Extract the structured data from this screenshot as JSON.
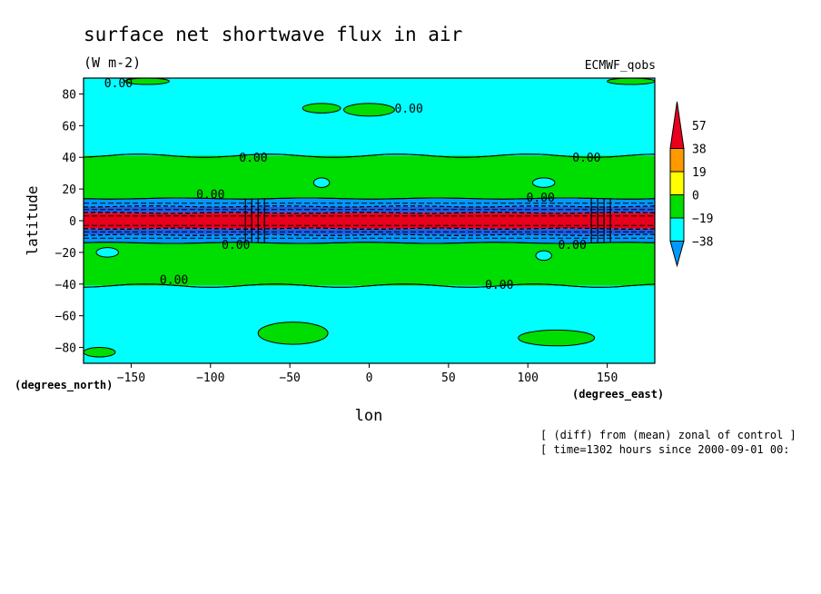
{
  "chart_data": {
    "type": "heatmap",
    "title": "surface net shortwave flux in air",
    "units": "(W m-2)",
    "dataset": "ECMWF_qobs",
    "xlabel": "lon",
    "ylabel": "latitude",
    "x_unit_label": "(degrees_east)",
    "y_unit_label": "(degrees_north)",
    "xlim": [
      -180,
      180
    ],
    "ylim": [
      -90,
      90
    ],
    "x_ticks": [
      -150,
      -100,
      -50,
      0,
      50,
      100,
      150
    ],
    "y_ticks": [
      80,
      60,
      40,
      20,
      0,
      -20,
      -40,
      -60,
      -80
    ],
    "x_tick_labels": [
      "−150",
      "−100",
      "−50",
      "0",
      "50",
      "100",
      "150"
    ],
    "y_tick_labels": [
      "80",
      "60",
      "40",
      "20",
      "0",
      "−20",
      "−40",
      "−60",
      "−80"
    ],
    "notes": [
      "[ (diff) from (mean) zonal of control ]",
      "[ time=1302 hours since 2000-09-01 00:"
    ],
    "colorbar": {
      "levels": [
        57,
        38,
        19,
        0,
        -19,
        -38
      ],
      "labels": [
        "57",
        "38",
        "19",
        "0",
        "−19",
        "−38"
      ],
      "colors": [
        "#e8001c",
        "#ff9900",
        "#ffff00",
        "#00dd00",
        "#00ffff",
        "#0099ff"
      ]
    },
    "zonal_bands": [
      {
        "lat": [
          41,
          90
        ],
        "value_range": "-19 to 0",
        "color": "#00ffff"
      },
      {
        "lat": [
          14,
          41
        ],
        "value_range": "0 to 19",
        "color": "#00dd00"
      },
      {
        "lat": [
          9,
          14
        ],
        "value_range": "-38 to -19",
        "color": "#0099ff"
      },
      {
        "lat": [
          5,
          9
        ],
        "value_range": "< -38",
        "color": "#1a5fe8"
      },
      {
        "lat": [
          -5,
          5
        ],
        "value_range": "> 57",
        "color": "#e8001c"
      },
      {
        "lat": [
          -9,
          -5
        ],
        "value_range": "< -38",
        "color": "#1a5fe8"
      },
      {
        "lat": [
          -14,
          -9
        ],
        "value_range": "-38 to -19",
        "color": "#0099ff"
      },
      {
        "lat": [
          -41,
          -14
        ],
        "value_range": "0 to 19",
        "color": "#00dd00"
      },
      {
        "lat": [
          -90,
          -41
        ],
        "value_range": "-19 to 0",
        "color": "#00ffff"
      }
    ],
    "patches": [
      {
        "lon": -48,
        "lat": -71,
        "rx": 22,
        "ry": 7,
        "color": "#00dd00"
      },
      {
        "lon": 118,
        "lat": -74,
        "rx": 24,
        "ry": 5,
        "color": "#00dd00"
      },
      {
        "lon": 0,
        "lat": 70,
        "rx": 16,
        "ry": 4,
        "color": "#00dd00"
      },
      {
        "lon": -30,
        "lat": 71,
        "rx": 12,
        "ry": 3,
        "color": "#00dd00"
      },
      {
        "lon": 165,
        "lat": 88,
        "rx": 15,
        "ry": 2,
        "color": "#00dd00"
      },
      {
        "lon": -140,
        "lat": 88,
        "rx": 14,
        "ry": 2,
        "color": "#00dd00"
      },
      {
        "lon": -170,
        "lat": -83,
        "rx": 10,
        "ry": 3,
        "color": "#00dd00"
      },
      {
        "lon": -30,
        "lat": 24,
        "rx": 5,
        "ry": 3,
        "color": "#00ffff"
      },
      {
        "lon": 110,
        "lat": 24,
        "rx": 7,
        "ry": 3,
        "color": "#00ffff"
      },
      {
        "lon": -165,
        "lat": -20,
        "rx": 7,
        "ry": 3,
        "color": "#00ffff"
      },
      {
        "lon": 110,
        "lat": -22,
        "rx": 5,
        "ry": 3,
        "color": "#00ffff"
      }
    ],
    "contour_labels": [
      {
        "text": "0.00",
        "lon": -158,
        "lat": 87
      },
      {
        "text": "0.00",
        "lon": 25,
        "lat": 71
      },
      {
        "text": "0.00",
        "lon": -73,
        "lat": 40
      },
      {
        "text": "0.00",
        "lon": 137,
        "lat": 40
      },
      {
        "text": "0.00",
        "lon": -100,
        "lat": 17
      },
      {
        "text": "0.00",
        "lon": 108,
        "lat": 15
      },
      {
        "text": "0.00",
        "lon": -84,
        "lat": -15
      },
      {
        "text": "0.00",
        "lon": 128,
        "lat": -15
      },
      {
        "text": "0.00",
        "lon": -123,
        "lat": -37
      },
      {
        "text": "0.00",
        "lon": 82,
        "lat": -40
      }
    ]
  }
}
